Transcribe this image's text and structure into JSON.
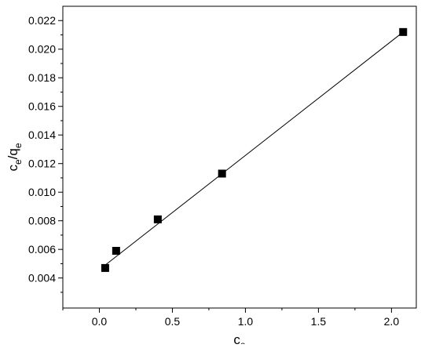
{
  "chart_data": {
    "type": "scatter",
    "xlabel": [
      "c",
      "e"
    ],
    "ylabel": [
      "c",
      "e",
      "/q",
      "e"
    ],
    "xlim": [
      -0.25,
      2.17
    ],
    "ylim": [
      0.0019,
      0.023
    ],
    "xticks": [
      {
        "value": 0,
        "label": "0.0"
      },
      0.5,
      {
        "value": 1,
        "label": "1.0"
      },
      1.5,
      {
        "value": 2,
        "label": "2.0"
      }
    ],
    "yticks": [
      0.004,
      0.006,
      0.008,
      {
        "value": 0.01,
        "label": "0.010"
      },
      0.012,
      0.014,
      0.016,
      0.018,
      {
        "value": 0.02,
        "label": "0.020"
      },
      0.022
    ],
    "color": "#000000",
    "series": [
      {
        "type": "scatter",
        "x": [
          0.04,
          0.115,
          0.4,
          0.84,
          2.08
        ],
        "values": [
          0.0047,
          0.0059,
          0.0081,
          0.0113,
          0.0212
        ]
      },
      {
        "type": "line",
        "x": [
          0.04,
          2.08
        ],
        "values": [
          0.0049,
          0.0212
        ]
      }
    ]
  }
}
